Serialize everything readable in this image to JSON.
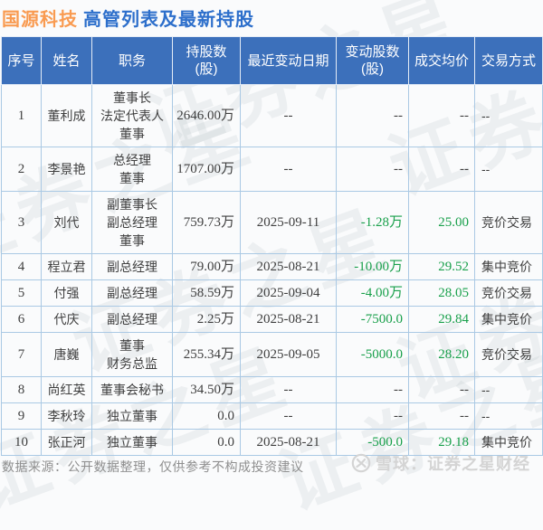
{
  "title": {
    "stock": "国源科技",
    "subtitle": "高管列表及最新持股"
  },
  "colors": {
    "header_bg": "#3c70bb",
    "title_orange": "#f99b51",
    "title_blue": "#2d6fcb",
    "negative_green": "#19a04b",
    "grid_border": "#aac9e4"
  },
  "watermark": {
    "text": "证券之星"
  },
  "chart_data": {
    "type": "table",
    "title": "国源科技 高管列表及最新持股",
    "columns": [
      "序号",
      "姓名",
      "职务",
      "持股数\n(股)",
      "最近变动日期",
      "变动股数\n(股)",
      "成交均价",
      "交易方式"
    ],
    "rows": [
      [
        "1",
        "董利成",
        "董事长\n法定代表人\n董事",
        "2646.00万",
        "--",
        "--",
        "--",
        "--"
      ],
      [
        "2",
        "李景艳",
        "总经理\n董事",
        "1707.00万",
        "--",
        "--",
        "--",
        "--"
      ],
      [
        "3",
        "刘代",
        "副董事长\n副总经理\n董事",
        "759.73万",
        "2025-09-11",
        "-1.28万",
        "25.00",
        "竞价交易"
      ],
      [
        "4",
        "程立君",
        "副总经理",
        "79.00万",
        "2025-08-21",
        "-10.00万",
        "29.52",
        "集中竞价"
      ],
      [
        "5",
        "付强",
        "副总经理",
        "58.59万",
        "2025-09-04",
        "-4.00万",
        "28.05",
        "竞价交易"
      ],
      [
        "6",
        "代庆",
        "副总经理",
        "2.25万",
        "2025-08-21",
        "-7500.0",
        "29.84",
        "集中竞价"
      ],
      [
        "7",
        "唐巍",
        "董事\n财务总监",
        "255.34万",
        "2025-09-05",
        "-5000.0",
        "28.20",
        "竞价交易"
      ],
      [
        "8",
        "尚红英",
        "董事会秘书",
        "34.50万",
        "--",
        "--",
        "--",
        "--"
      ],
      [
        "9",
        "李秋玲",
        "独立董事",
        "0.0",
        "--",
        "--",
        "--",
        "--"
      ],
      [
        "10",
        "张正河",
        "独立董事",
        "0.0",
        "2025-08-21",
        "-500.0",
        "29.18",
        "集中竞价"
      ]
    ]
  },
  "footer": {
    "disclaimer": "数据来源：公开数据整理，仅供参考不构成投资建议",
    "brand": "雪球：证券之星财经"
  }
}
